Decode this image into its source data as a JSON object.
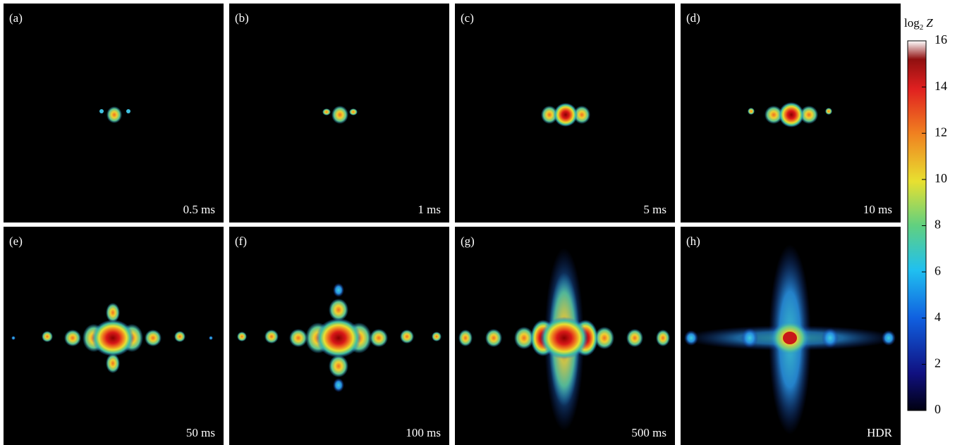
{
  "panels": [
    {
      "label": "(a)",
      "exposure": "0.5 ms"
    },
    {
      "label": "(b)",
      "exposure": "1 ms"
    },
    {
      "label": "(c)",
      "exposure": "5 ms"
    },
    {
      "label": "(d)",
      "exposure": "10 ms"
    },
    {
      "label": "(e)",
      "exposure": "50 ms"
    },
    {
      "label": "(f)",
      "exposure": "100 ms"
    },
    {
      "label": "(g)",
      "exposure": "500 ms"
    },
    {
      "label": "(h)",
      "exposure": "HDR"
    }
  ],
  "colorbar": {
    "title_base": "log",
    "title_subscript": "2",
    "title_variable": "Z",
    "lim": [
      0,
      16
    ],
    "ticks": [
      0,
      2,
      4,
      6,
      8,
      10,
      12,
      14,
      16
    ]
  }
}
